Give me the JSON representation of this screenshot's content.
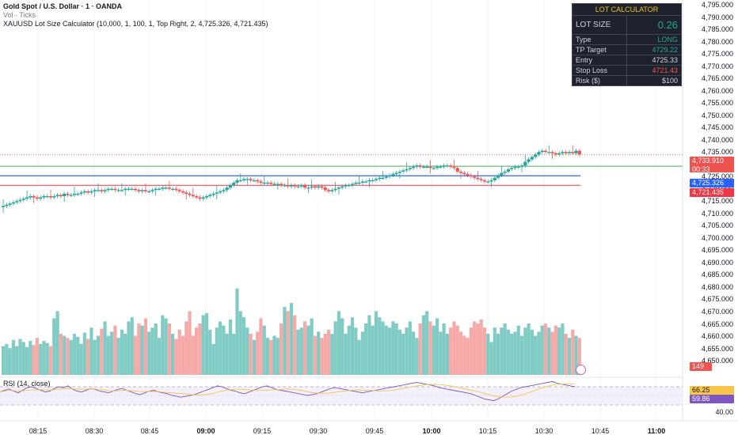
{
  "header": {
    "title": "Gold Spot / U.S. Dollar · 1 · OANDA",
    "vol": "Vol · Ticks",
    "indicator": "XAUUSD Lot Size Calculator (10,000, 1, 100, 1, Top Right, 2, 4,725.326, 4,721.435)"
  },
  "rsi_label": "RSI (14, close)",
  "calculator": {
    "title": "LOT CALCULATOR",
    "lot_size_label": "LOT SIZE",
    "lot_size_value": "0.26",
    "type_label": "Type",
    "type_value": "LONG",
    "tp_label": "TP Target",
    "tp_value": "4729.22",
    "entry_label": "Entry",
    "entry_value": "4725.33",
    "sl_label": "Stop Loss",
    "sl_value": "4721.43",
    "risk_label": "Risk ($)",
    "risk_value": "$100"
  },
  "price_axis": [
    "4,795.000",
    "4,790.000",
    "4,785.000",
    "4,780.000",
    "4,775.000",
    "4,770.000",
    "4,765.000",
    "4,760.000",
    "4,755.000",
    "4,750.000",
    "4,745.000",
    "4,740.000",
    "4,735.000",
    "4,730.000",
    "4,725.000",
    "4,720.000",
    "4,715.000",
    "4,710.000",
    "4,705.000",
    "4,700.000",
    "4,695.000",
    "4,690.000",
    "4,685.000",
    "4,680.000",
    "4,675.000",
    "4,670.000",
    "4,665.000",
    "4,660.000",
    "4,655.000",
    "4,650.000"
  ],
  "tags": {
    "last_price": "4,733.910",
    "countdown": "00:33",
    "entry": "4,725.326",
    "stop": "4,721.435",
    "volume": "149",
    "rsi_a": "66.25",
    "rsi_b": "59.86"
  },
  "rsi_axis": [
    "40.00"
  ],
  "time_axis": [
    {
      "t": "08:15",
      "bold": false
    },
    {
      "t": "08:30",
      "bold": false
    },
    {
      "t": "08:45",
      "bold": false
    },
    {
      "t": "09:00",
      "bold": true
    },
    {
      "t": "09:15",
      "bold": false
    },
    {
      "t": "09:30",
      "bold": false
    },
    {
      "t": "09:45",
      "bold": false
    },
    {
      "t": "10:00",
      "bold": true
    },
    {
      "t": "10:15",
      "bold": false
    },
    {
      "t": "10:30",
      "bold": false
    },
    {
      "t": "10:45",
      "bold": false
    },
    {
      "t": "11:00",
      "bold": true
    }
  ],
  "colors": {
    "up": "#26a69a",
    "down": "#ef5350",
    "tp_line": "#4caf50",
    "entry_line": "#2962ff",
    "sl_line": "#f23645",
    "rsi": "#7e57c2",
    "rsi_ma": "#f7c548"
  },
  "chart_data": {
    "type": "candlestick",
    "ylim": [
      4650,
      4795
    ],
    "tp": 4729.22,
    "entry": 4725.326,
    "stop": 4721.435,
    "close_path": [
      4713,
      4713.5,
      4714,
      4714.5,
      4715,
      4715.5,
      4716,
      4716.5,
      4717,
      4716.5,
      4716,
      4716.5,
      4717,
      4717,
      4716.5,
      4717,
      4717.5,
      4717,
      4718,
      4717.5,
      4717.5,
      4718,
      4718,
      4718.5,
      4719,
      4718.5,
      4719,
      4719.5,
      4719.5,
      4719,
      4719.5,
      4720,
      4720,
      4719.5,
      4719.5,
      4719.5,
      4720,
      4720,
      4720,
      4719.5,
      4719,
      4719.5,
      4719,
      4719,
      4719.5,
      4720,
      4720,
      4720.5,
      4720.5,
      4720,
      4720,
      4719.5,
      4719,
      4718.5,
      4718,
      4717.5,
      4717,
      4716.5,
      4716,
      4716.5,
      4717,
      4717.5,
      4718,
      4718.5,
      4719,
      4719.5,
      4720.5,
      4721.5,
      4722.5,
      4723.5,
      4723.5,
      4724,
      4724,
      4723.5,
      4723.5,
      4723,
      4722.5,
      4722.5,
      4722.5,
      4722,
      4722,
      4722,
      4721.5,
      4721.5,
      4721,
      4721.5,
      4721,
      4721,
      4721.5,
      4720.5,
      4720.5,
      4721,
      4720.5,
      4721,
      4720.5,
      4719.5,
      4719,
      4719.5,
      4720,
      4720.5,
      4721,
      4721.5,
      4721.5,
      4722,
      4722.5,
      4722.5,
      4723,
      4723,
      4723.5,
      4723.5,
      4724,
      4724.5,
      4724.5,
      4725,
      4725.5,
      4726,
      4726.5,
      4727,
      4727.5,
      4728,
      4728.5,
      4729,
      4729.5,
      4729,
      4729,
      4729,
      4728.5,
      4728.5,
      4729,
      4729,
      4729.5,
      4729.5,
      4729,
      4728.5,
      4727,
      4726.5,
      4726,
      4725.5,
      4725,
      4724.5,
      4724,
      4723.5,
      4723,
      4723,
      4723.5,
      4724.5,
      4725.5,
      4726.5,
      4727,
      4728,
      4728.5,
      4729,
      4729,
      4729.5,
      4731,
      4732,
      4733,
      4734,
      4735,
      4735.5,
      4735,
      4735,
      4734.5,
      4734,
      4734.5,
      4735,
      4734.5,
      4735,
      4734.5,
      4735.5,
      4734
    ],
    "volume_path": [
      28,
      30,
      26,
      34,
      28,
      35,
      32,
      27,
      33,
      29,
      36,
      30,
      33,
      31,
      28,
      55,
      62,
      40,
      38,
      36,
      34,
      40,
      37,
      30,
      41,
      35,
      46,
      34,
      38,
      45,
      52,
      38,
      42,
      48,
      36,
      44,
      40,
      52,
      56,
      38,
      50,
      48,
      55,
      42,
      46,
      50,
      36,
      58,
      55,
      50,
      40,
      35,
      44,
      38,
      52,
      62,
      38,
      46,
      50,
      58,
      60,
      44,
      30,
      46,
      52,
      48,
      40,
      54,
      40,
      84,
      62,
      56,
      46,
      40,
      34,
      42,
      55,
      48,
      36,
      34,
      38,
      36,
      50,
      66,
      62,
      70,
      58,
      44,
      46,
      52,
      48,
      55,
      38,
      42,
      36,
      40,
      44,
      40,
      52,
      62,
      55,
      40,
      48,
      56,
      46,
      34,
      42,
      50,
      58,
      48,
      62,
      56,
      52,
      48,
      46,
      52,
      50,
      44,
      40,
      46,
      52,
      42,
      36,
      50,
      58,
      62,
      52,
      48,
      55,
      42,
      50,
      40,
      46,
      52,
      48,
      42,
      38,
      36,
      46,
      52,
      50,
      54,
      46,
      40,
      32,
      46,
      40,
      46,
      50,
      44,
      40,
      42,
      48,
      38,
      46,
      50,
      44,
      38,
      42,
      48,
      50,
      46,
      42,
      48,
      46,
      50,
      40,
      36,
      44,
      38,
      36,
      34,
      30
    ],
    "rsi_path": [
      48,
      52,
      55,
      50,
      46,
      52,
      58,
      60,
      56,
      52,
      48,
      50,
      56,
      60,
      58,
      62,
      55,
      50,
      48,
      52,
      56,
      54,
      50,
      48,
      46,
      50,
      54,
      56,
      52,
      48,
      44,
      42,
      46,
      50,
      52,
      48,
      46,
      44,
      40,
      38,
      36,
      38,
      40,
      42,
      46,
      50,
      54,
      58,
      62,
      60,
      56,
      52,
      50,
      46,
      44,
      48,
      52,
      56,
      60,
      62,
      58,
      54,
      52,
      50,
      48,
      46,
      44,
      42,
      40,
      42,
      44,
      48,
      52,
      56,
      58,
      56,
      54,
      52,
      50,
      48,
      46,
      48,
      50,
      52,
      54,
      56,
      58,
      60,
      62,
      64,
      66,
      68,
      70,
      68,
      66,
      64,
      62,
      58,
      56,
      54,
      52,
      50,
      48,
      46,
      44,
      40,
      36,
      32,
      30,
      28,
      32,
      38,
      44,
      50,
      54,
      58,
      60,
      62,
      64,
      66,
      68,
      70,
      72,
      68,
      66,
      64,
      62,
      60
    ]
  }
}
